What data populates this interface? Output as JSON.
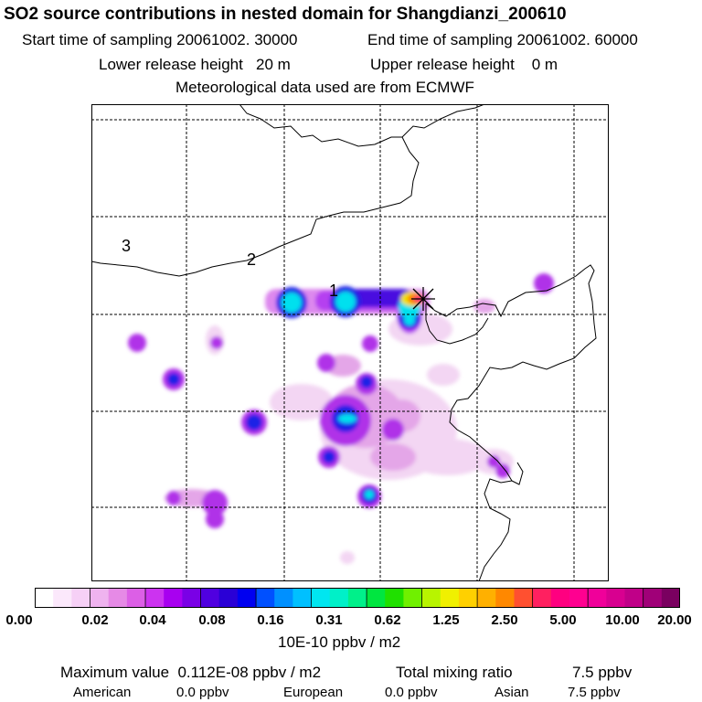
{
  "header": {
    "title": "SO2 source contributions in nested domain for Shangdianzi_200610",
    "start_label": "Start time of sampling 20061002. 30000",
    "end_label": "End time of sampling 20061002. 60000",
    "lower_label": "Lower release height   20 m",
    "upper_label": "Upper release height    0 m",
    "met_label": "Meteorological data used are from ECMWF"
  },
  "map": {
    "contour_labels": [
      "1",
      "2",
      "3"
    ],
    "station_marker": "receptor-star"
  },
  "legend": {
    "colors": [
      "#ffffff",
      "#fbe8fb",
      "#f6d0f6",
      "#efb3ef",
      "#e68ae6",
      "#dc5fe6",
      "#cc33f0",
      "#a800f0",
      "#7a00e6",
      "#5000e0",
      "#2a00d6",
      "#0000f0",
      "#0050ff",
      "#0090ff",
      "#00c0ff",
      "#00e6f0",
      "#00f0c8",
      "#00f08a",
      "#00e640",
      "#20e000",
      "#70f000",
      "#b8f400",
      "#f0f000",
      "#ffd000",
      "#ffb000",
      "#ff8800",
      "#ff5030",
      "#ff2060",
      "#ff0080",
      "#ff0090",
      "#f0009a",
      "#d80090",
      "#c00088",
      "#a00078",
      "#7a0060"
    ],
    "ticks": [
      "0.00",
      "0.02",
      "0.04",
      "0.08",
      "0.16",
      "0.31",
      "0.62",
      "1.25",
      "2.50",
      "5.00",
      "10.00",
      "20.00"
    ],
    "unit": "10E-10 ppbv / m2"
  },
  "footer": {
    "max_label": "Maximum value  0.112E-08 ppbv / m2",
    "total_label": "Total mixing ratio",
    "total_value": "7.5 ppbv",
    "american_label": "American",
    "american_value": "0.0 ppbv",
    "european_label": "European",
    "european_value": "0.0 ppbv",
    "asian_label": "Asian",
    "asian_value": "7.5 ppbv"
  }
}
